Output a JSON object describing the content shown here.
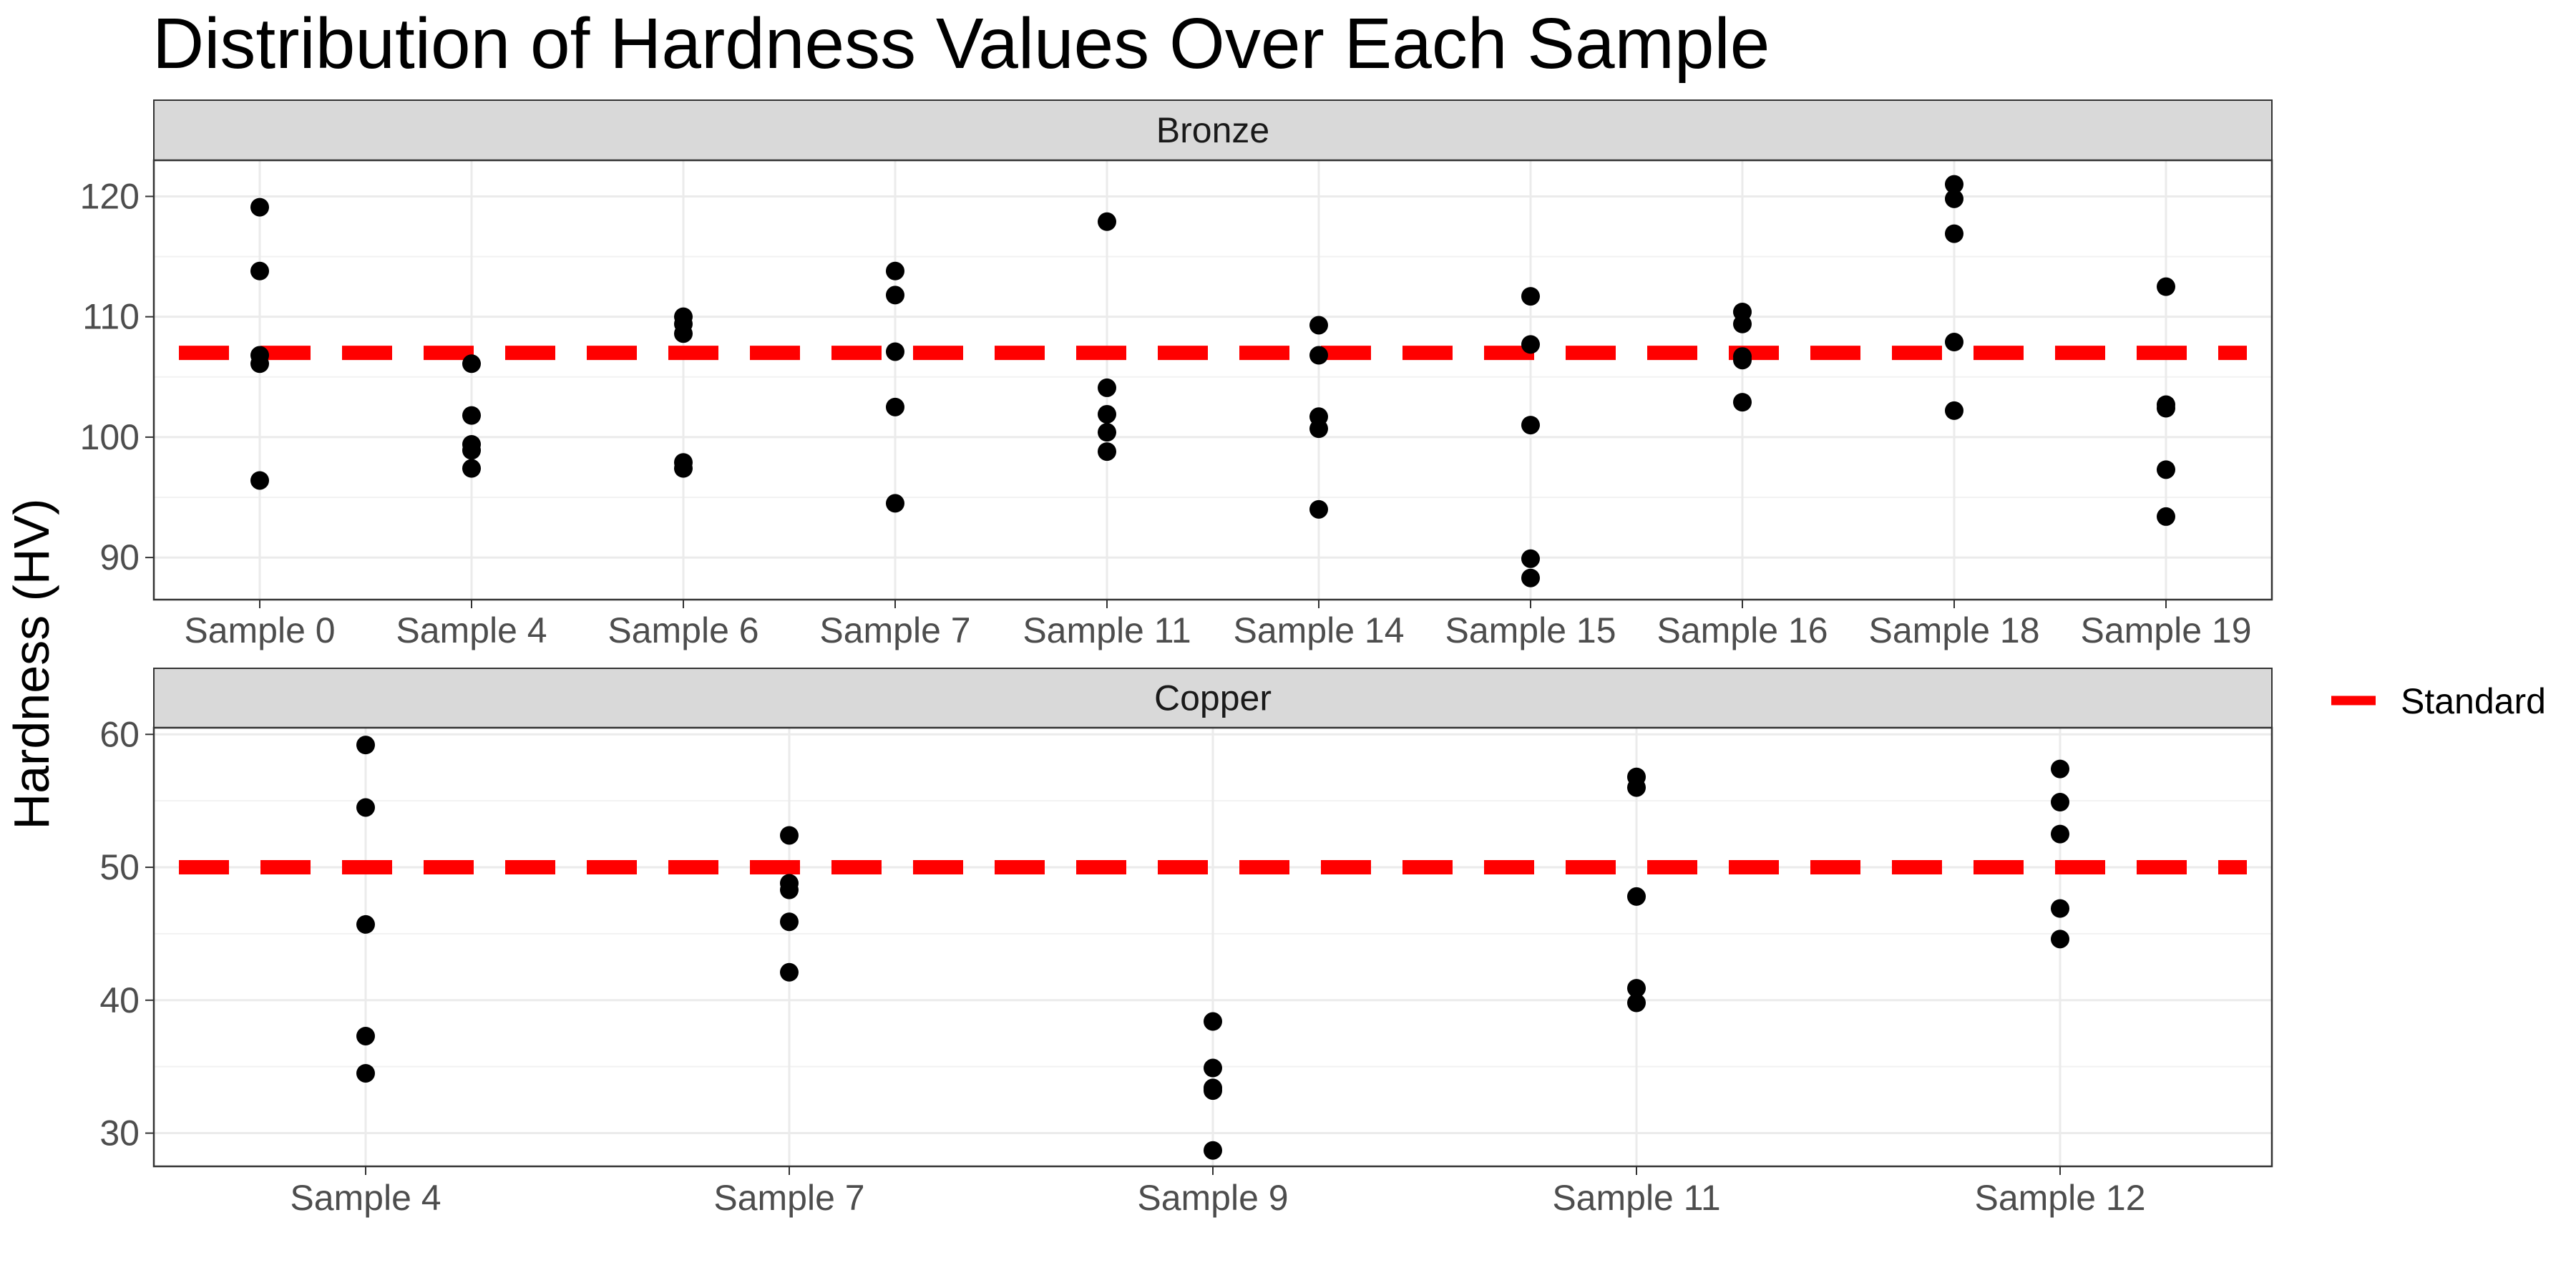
{
  "chart_data": {
    "type": "scatter",
    "title": "Distribution of Hardness Values Over Each Sample",
    "ylabel": "Hardness (HV)",
    "xlabel": "",
    "grid": true,
    "legend": {
      "placement": "right",
      "entries": [
        {
          "label": "Standard",
          "color": "#ff0000",
          "style": "dashed-line"
        }
      ]
    },
    "colors": {
      "points": "#000000",
      "standard_line": "#ff0000",
      "strip_fill": "#d9d9d9",
      "grid": "#ebebeb"
    },
    "panels": [
      {
        "name": "Bronze",
        "standard": 107,
        "ylim": [
          86.5,
          123
        ],
        "yticks": [
          90,
          100,
          110,
          120
        ],
        "categories": [
          "Sample 0",
          "Sample 4",
          "Sample 6",
          "Sample 7",
          "Sample 11",
          "Sample 14",
          "Sample 15",
          "Sample 16",
          "Sample 18",
          "Sample 19"
        ],
        "values": [
          [
            119.1,
            113.8,
            106.8,
            106.1,
            96.4
          ],
          [
            106.1,
            101.8,
            99.4,
            98.9,
            97.4
          ],
          [
            110.0,
            109.4,
            108.6,
            97.9,
            97.4
          ],
          [
            113.8,
            111.8,
            107.1,
            102.5,
            94.5
          ],
          [
            117.9,
            104.1,
            101.9,
            100.4,
            98.8
          ],
          [
            109.3,
            106.8,
            101.7,
            100.7,
            94.0
          ],
          [
            111.7,
            107.7,
            101.0,
            89.9,
            88.3
          ],
          [
            110.4,
            109.4,
            106.7,
            106.4,
            102.9
          ],
          [
            121.0,
            119.8,
            116.9,
            107.9,
            102.2
          ],
          [
            112.5,
            102.7,
            102.4,
            97.3,
            93.4
          ]
        ]
      },
      {
        "name": "Copper",
        "standard": 50,
        "ylim": [
          27.5,
          60.5
        ],
        "yticks": [
          30,
          40,
          50,
          60
        ],
        "categories": [
          "Sample 4",
          "Sample 7",
          "Sample 9",
          "Sample 11",
          "Sample 12"
        ],
        "values": [
          [
            59.2,
            54.5,
            45.7,
            37.3,
            34.5
          ],
          [
            52.4,
            48.8,
            48.3,
            45.9,
            42.1
          ],
          [
            38.4,
            34.9,
            33.4,
            33.2,
            28.7
          ],
          [
            56.8,
            56.0,
            47.8,
            40.9,
            39.8
          ],
          [
            57.4,
            54.9,
            52.5,
            46.9,
            44.6
          ]
        ]
      }
    ]
  }
}
